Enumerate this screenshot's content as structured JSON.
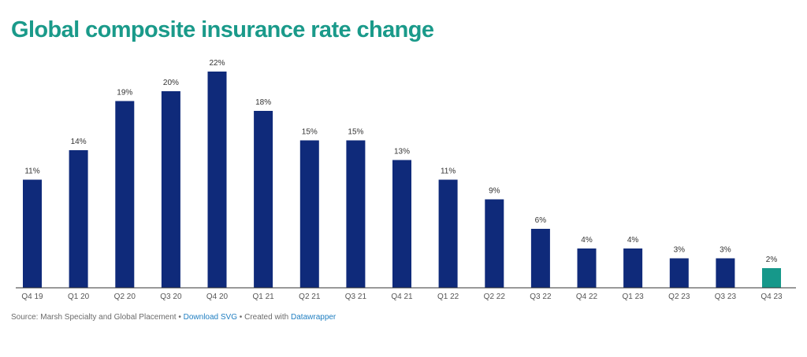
{
  "chart_data": {
    "type": "bar",
    "title": "Global composite insurance rate change",
    "categories": [
      "Q4 19",
      "Q1 20",
      "Q2 20",
      "Q3 20",
      "Q4 20",
      "Q1 21",
      "Q2 21",
      "Q3 21",
      "Q4 21",
      "Q1 22",
      "Q2 22",
      "Q3 22",
      "Q4 22",
      "Q1 23",
      "Q2 23",
      "Q3 23",
      "Q4 23"
    ],
    "values": [
      11,
      14,
      19,
      20,
      22,
      18,
      15,
      15,
      13,
      11,
      9,
      6,
      4,
      4,
      3,
      3,
      2
    ],
    "value_labels": [
      "11%",
      "14%",
      "19%",
      "20%",
      "22%",
      "18%",
      "15%",
      "15%",
      "13%",
      "11%",
      "9%",
      "6%",
      "4%",
      "4%",
      "3%",
      "3%",
      "2%"
    ],
    "highlight_category": "Q4 23",
    "ylim": [
      0,
      22
    ],
    "grid": false,
    "colors": {
      "bar": "#0f2a7a",
      "highlight": "#16988a",
      "title": "#1a9a8a",
      "link": "#1f7ec1"
    }
  },
  "footer": {
    "source": "Source: Marsh Specialty and Global Placement",
    "separator": "•",
    "download_label": "Download SVG",
    "created_with": "Created with",
    "tool_name": "Datawrapper"
  }
}
